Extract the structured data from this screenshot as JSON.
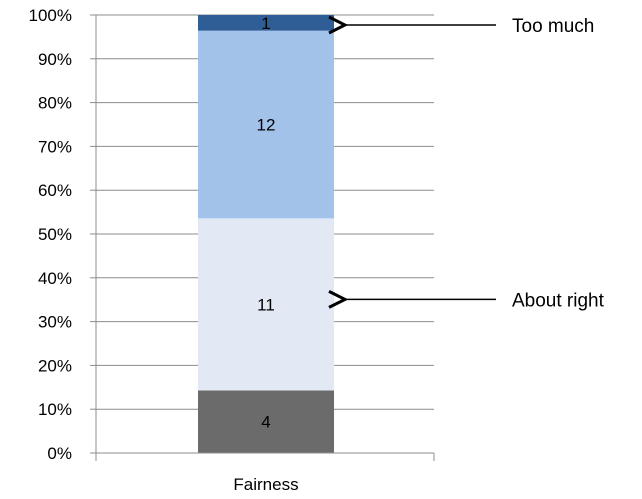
{
  "chart_data": {
    "type": "bar",
    "stacked": true,
    "normalized": true,
    "categories": [
      "Fairness"
    ],
    "series": [
      {
        "values": [
          4
        ],
        "color": "#6b6b6b"
      },
      {
        "values": [
          11
        ],
        "color": "#e2e9f4"
      },
      {
        "values": [
          12
        ],
        "color": "#a3c2ea"
      },
      {
        "values": [
          1
        ],
        "color": "#2f5d96"
      }
    ],
    "ylim": [
      0,
      100
    ],
    "yticks": [
      "0%",
      "10%",
      "20%",
      "30%",
      "40%",
      "50%",
      "60%",
      "70%",
      "80%",
      "90%",
      "100%"
    ],
    "grid": true,
    "annotations": [
      {
        "text": "Too much",
        "series_index": 3
      },
      {
        "text": "About right",
        "series_index": 1
      }
    ]
  }
}
